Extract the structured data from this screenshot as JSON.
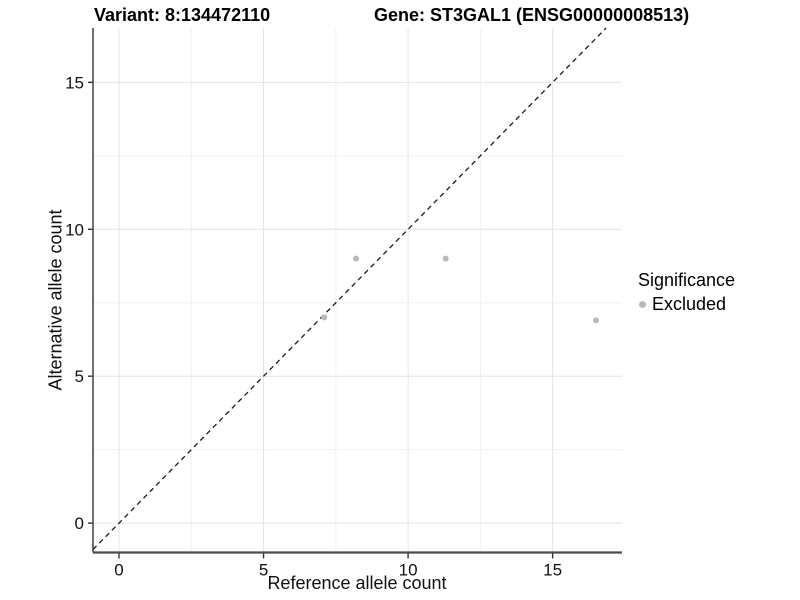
{
  "header": {
    "variant_label": "Variant: 8:134472110",
    "gene_label": "Gene: ST3GAL1 (ENSG00000008513)"
  },
  "chart_data": {
    "type": "scatter",
    "xlabel": "Reference allele count",
    "ylabel": "Alternative allele count",
    "x_ticks": [
      0,
      5,
      10,
      15
    ],
    "y_ticks": [
      0,
      5,
      10,
      15
    ],
    "x_minor": [
      2.5,
      7.5,
      12.5
    ],
    "y_minor": [
      2.5,
      7.5,
      12.5
    ],
    "xlim": [
      -0.9,
      17.4
    ],
    "ylim": [
      -1.0,
      16.85
    ],
    "grid": true,
    "identity_line": {
      "style": "dashed",
      "slope": 1,
      "intercept": 0
    },
    "series": [
      {
        "name": "Excluded",
        "color": "#b9b9b9",
        "points": [
          {
            "x": 7.1,
            "y": 7.0
          },
          {
            "x": 8.2,
            "y": 9.0
          },
          {
            "x": 11.3,
            "y": 9.0
          },
          {
            "x": 16.5,
            "y": 6.9
          }
        ]
      }
    ],
    "legend": {
      "title": "Significance",
      "position": "right",
      "items": [
        {
          "label": "Excluded",
          "color": "#b9b9b9"
        }
      ]
    },
    "colors": {
      "grid_major": "#e4e4e4",
      "grid_minor": "#f1f1f1",
      "axis_line_x": "#4d4d4d",
      "axis_line_y": "#333333",
      "tick": "#333333",
      "dashed_line": "#1a1a1a"
    }
  }
}
